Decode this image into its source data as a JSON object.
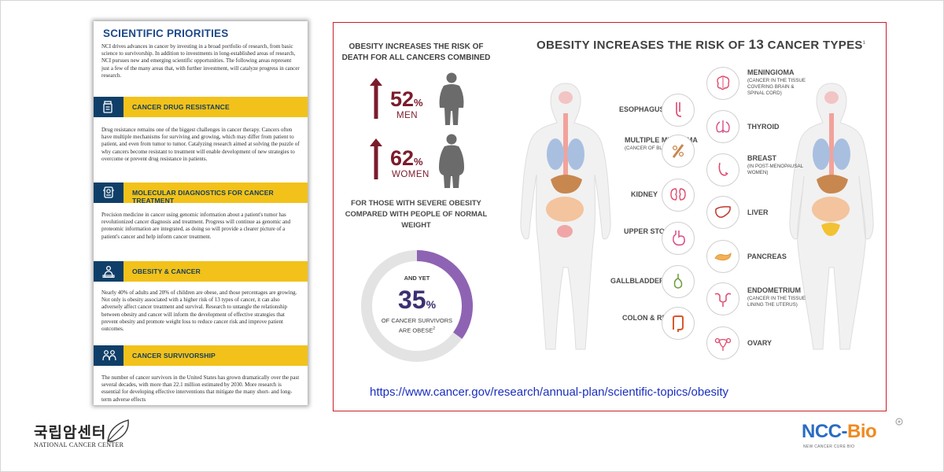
{
  "document": {
    "title": "SCIENTIFIC PRIORITIES",
    "intro": "NCI drives advances in cancer by investing in a broad portfolio of research, from basic science to survivorship. In addition to investments in long-established areas of research, NCI pursues new and emerging scientific opportunities. The following areas represent just a few of the many areas that, with further investment, will catalyze progress in cancer research.",
    "sections": [
      {
        "label": "CANCER DRUG RESISTANCE",
        "icon": "medicine-bottle-icon",
        "text": "Drug resistance remains one of the biggest challenges in cancer therapy. Cancers often have multiple mechanisms for surviving and growing, which may differ from patient to patient, and even from tumor to tumor. Catalyzing research aimed at solving the puzzle of why cancers become resistant to treatment will enable development of new strategies to overcome or prevent drug resistance in patients."
      },
      {
        "label": "MOLECULAR DIAGNOSTICS FOR CANCER TREATMENT",
        "icon": "diagnostic-device-icon",
        "text": "Precision medicine in cancer using genomic information about a patient's tumor has revolutionized cancer diagnosis and treatment. Progress will continue as genomic and proteomic information are integrated, as doing so will provide a clearer picture of a patient's cancer and help inform cancer treatment."
      },
      {
        "label": "OBESITY & CANCER",
        "icon": "person-scale-icon",
        "text": "Nearly 40% of adults and 20% of children are obese, and those percentages are growing. Not only is obesity associated with a higher risk of 13 types of cancer, it can also adversely affect cancer treatment and survival. Research to untangle the relationship between obesity and cancer will inform the development of effective strategies that prevent obesity and promote weight loss to reduce cancer risk and improve patient outcomes."
      },
      {
        "label": "CANCER SURVIVORSHIP",
        "icon": "people-group-icon",
        "text": "The number of cancer survivors in the United States has grown dramatically over the past several decades, with more than 22.1 million estimated by 2030. More research is essential for developing effective interventions that mitigate the many short- and long-term adverse effects"
      }
    ]
  },
  "infographic": {
    "left_heading": "OBESITY INCREASES THE RISK OF DEATH FOR ALL CANCERS COMBINED",
    "men_value": "52",
    "men_unit": "%",
    "men_label": "MEN",
    "women_value": "62",
    "women_unit": "%",
    "women_label": "WOMEN",
    "compare_text": "FOR THOSE WITH SEVERE OBESITY COMPARED WITH PEOPLE OF NORMAL WEIGHT",
    "survivor_pre": "AND YET",
    "survivor_value": "35",
    "survivor_unit": "%",
    "survivor_fraction": 0.35,
    "survivor_text": "OF CANCER SURVIVORS ARE OBESE",
    "survivor_sup": "2",
    "right_heading_a": "OBESITY INCREASES THE RISK OF",
    "right_heading_num": "13",
    "right_heading_b": "CANCER TYPES",
    "right_heading_sup": "1",
    "cancers_left": [
      {
        "name": "ESOPHAGUS",
        "sub": "",
        "icon": "esophagus-icon"
      },
      {
        "name": "MULTIPLE MYELOMA",
        "sub": "(CANCER OF BLOOD CELLS)",
        "icon": "blood-cells-icon"
      },
      {
        "name": "KIDNEY",
        "sub": "",
        "icon": "kidney-icon"
      },
      {
        "name": "UPPER STOMACH",
        "sub": "",
        "icon": "stomach-icon"
      },
      {
        "name": "GALLBLADDER",
        "sub": "",
        "icon": "gallbladder-icon"
      },
      {
        "name": "COLON & RECTUM",
        "sub": "",
        "icon": "colon-icon"
      }
    ],
    "cancers_right": [
      {
        "name": "MENINGIOMA",
        "sub": "(CANCER IN THE TISSUE COVERING BRAIN & SPINAL CORD)",
        "icon": "brain-icon"
      },
      {
        "name": "THYROID",
        "sub": "",
        "icon": "thyroid-icon"
      },
      {
        "name": "BREAST",
        "sub": "(IN POST-MENOPAUSAL WOMEN)",
        "icon": "breast-icon"
      },
      {
        "name": "LIVER",
        "sub": "",
        "icon": "liver-icon"
      },
      {
        "name": "PANCREAS",
        "sub": "",
        "icon": "pancreas-icon"
      },
      {
        "name": "ENDOMETRIUM",
        "sub": "(CANCER IN THE TISSUE LINING THE UTERUS)",
        "icon": "uterus-icon"
      },
      {
        "name": "OVARY",
        "sub": "",
        "icon": "ovary-icon"
      }
    ],
    "url": "https://www.cancer.gov/research/annual-plan/scientific-topics/obesity"
  },
  "logos": {
    "ncc_korean": "국립암센터",
    "ncc_english": "NATIONAL CANCER CENTER",
    "bio_a": "NCC-",
    "bio_b": "Bio",
    "bio_sub": "NEW CANCER CURE BIO"
  },
  "colors": {
    "accent_red": "#7b1c2c",
    "nci_blue": "#1d4a8a",
    "band_yellow": "#f2c21a",
    "ring_purple": "#8e63b3",
    "url_blue": "#1a2fbf",
    "bio_blue": "#2a6cc4",
    "bio_orange": "#f08a1f"
  }
}
